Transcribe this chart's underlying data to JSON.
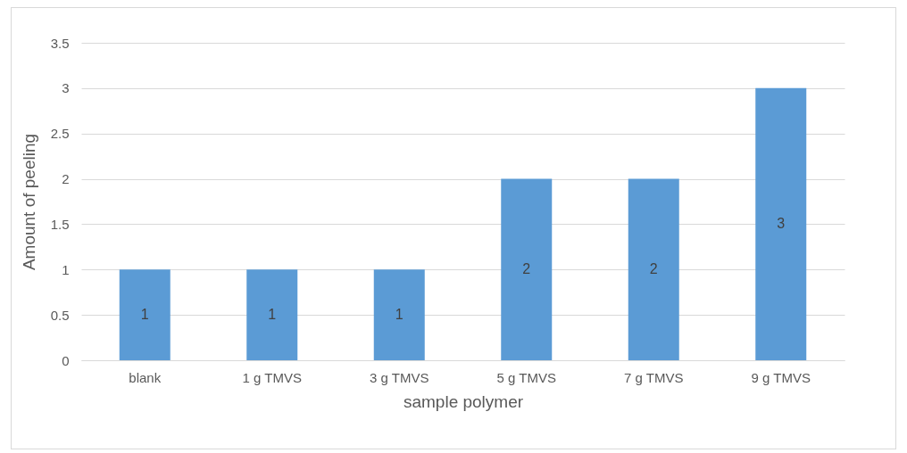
{
  "chart_data": {
    "type": "bar",
    "xlabel": "sample polymer",
    "ylabel": "Amount of peeling",
    "categories": [
      "blank",
      "1 g TMVS",
      "3 g TMVS",
      "5 g TMVS",
      "7 g TMVS",
      "9 g TMVS"
    ],
    "values": [
      1,
      1,
      1,
      2,
      2,
      3
    ],
    "color": "#5b9bd5",
    "value_labels": [
      "1",
      "1",
      "1",
      "2",
      "2",
      "3"
    ],
    "ylim": [
      0,
      3.5
    ],
    "yticks": [
      0,
      0.5,
      1,
      1.5,
      2,
      2.5,
      3,
      3.5
    ],
    "grid": "y"
  }
}
